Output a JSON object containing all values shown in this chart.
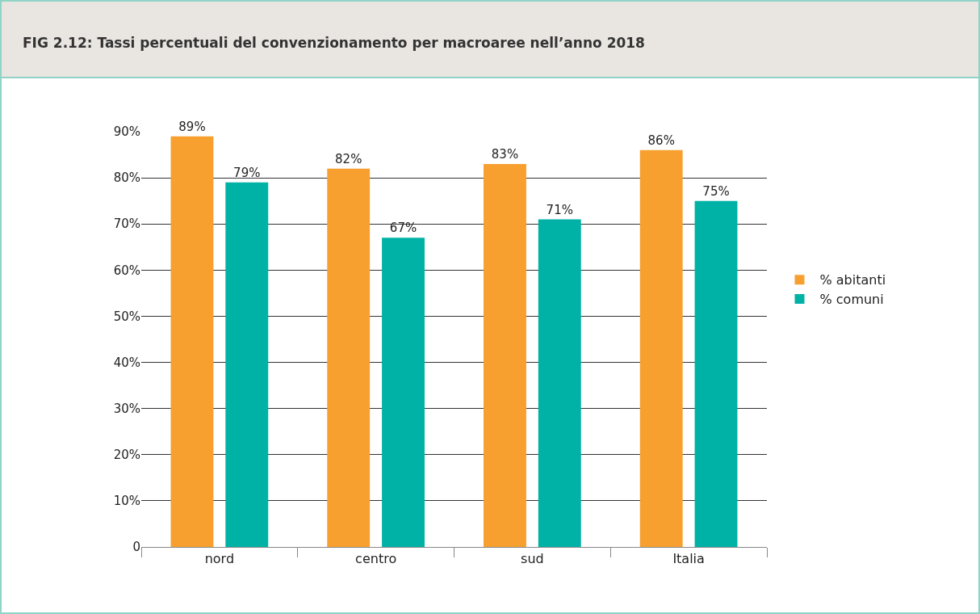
{
  "chart_data": {
    "type": "bar",
    "title": "FIG 2.12: Tassi percentuali del convenzionamento per macroaree nell’anno 2018",
    "categories": [
      "nord",
      "centro",
      "sud",
      "Italia"
    ],
    "series": [
      {
        "name": "% abitanti",
        "color": "#f7a030",
        "values": [
          89,
          82,
          83,
          86
        ],
        "value_labels": [
          "89%",
          "82%",
          "83%",
          "86%"
        ]
      },
      {
        "name": "% comuni",
        "color": "#00b2a5",
        "values": [
          79,
          67,
          71,
          75
        ],
        "value_labels": [
          "79%",
          "67%",
          "71%",
          "75%"
        ]
      }
    ],
    "ylim": [
      0,
      90
    ],
    "yticks": [
      0,
      {
        "value": 10,
        "label": "10%"
      },
      {
        "value": 20,
        "label": "20%"
      },
      {
        "value": 30,
        "label": "30%"
      },
      {
        "value": 40,
        "label": "40%"
      },
      {
        "value": 50,
        "label": "50%"
      },
      {
        "value": 60,
        "label": "60%"
      },
      {
        "value": 70,
        "label": "70%"
      },
      {
        "value": 80,
        "label": "80%"
      },
      {
        "value": 90,
        "label": "90%"
      }
    ],
    "grid": "y",
    "legend": "right"
  }
}
